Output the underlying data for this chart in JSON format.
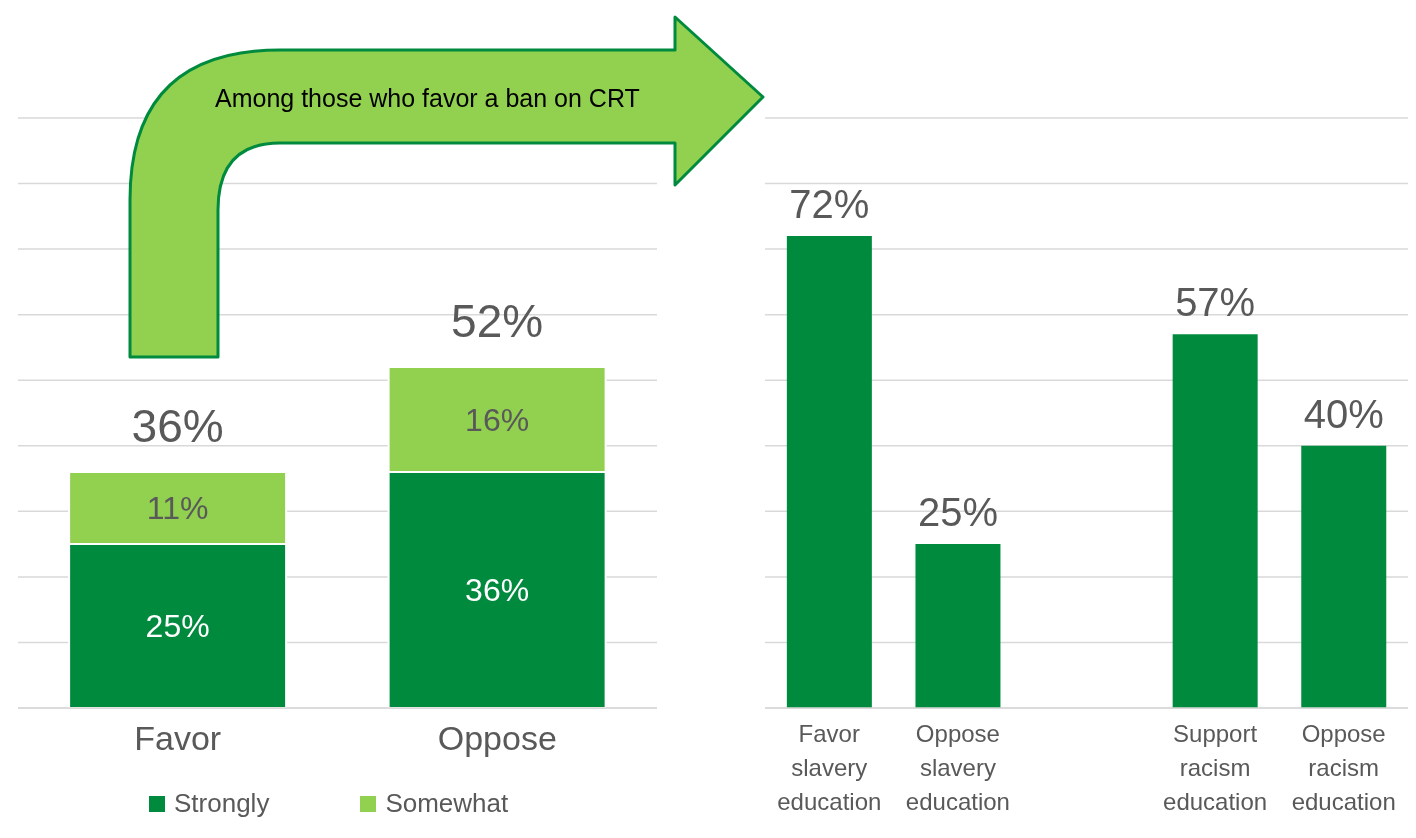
{
  "chart_data": [
    {
      "type": "bar",
      "stacked": true,
      "categories": [
        "Favor",
        "Oppose"
      ],
      "series": [
        {
          "name": "Strongly",
          "color": "#008a3e",
          "values": [
            25,
            36
          ],
          "value_labels": [
            "25%",
            "36%"
          ]
        },
        {
          "name": "Somewhat",
          "color": "#92d050",
          "values": [
            11,
            16
          ],
          "value_labels": [
            "11%",
            "16%"
          ]
        }
      ],
      "totals": [
        "36%",
        "52%"
      ],
      "ylim": [
        0,
        90
      ],
      "yticks": [
        {
          "value": 0,
          "label": null
        },
        {
          "value": 10,
          "label": null
        },
        {
          "value": 20,
          "label": null
        },
        {
          "value": 30,
          "label": null
        },
        {
          "value": 40,
          "label": null
        },
        {
          "value": 50,
          "label": null
        },
        {
          "value": 60,
          "label": null
        },
        {
          "value": 70,
          "label": null
        },
        {
          "value": 80,
          "label": null
        },
        {
          "value": 90,
          "label": null
        }
      ],
      "tick_labels": "x",
      "grid": "y",
      "legend": "bottom",
      "marker": "square",
      "annotations": [
        "Among those who favor a ban on CRT"
      ]
    },
    {
      "type": "bar",
      "categories": [
        "Favor slavery education",
        "Oppose slavery education",
        null,
        "Support racism education",
        "Oppose racism education"
      ],
      "values": [
        72,
        25,
        null,
        57,
        40
      ],
      "color": "#008a3e",
      "value_labels": [
        "72%",
        "25%",
        null,
        "57%",
        "40%"
      ],
      "ylim": [
        0,
        90
      ],
      "yticks": [
        {
          "value": 0,
          "label": null
        },
        {
          "value": 10,
          "label": null
        },
        {
          "value": 20,
          "label": null
        },
        {
          "value": 30,
          "label": null
        },
        {
          "value": 40,
          "label": null
        },
        {
          "value": 50,
          "label": null
        },
        {
          "value": 60,
          "label": null
        },
        {
          "value": 70,
          "label": null
        },
        {
          "value": 80,
          "label": null
        },
        {
          "value": 90,
          "label": null
        }
      ],
      "tick_labels": "x",
      "grid": "y"
    }
  ]
}
